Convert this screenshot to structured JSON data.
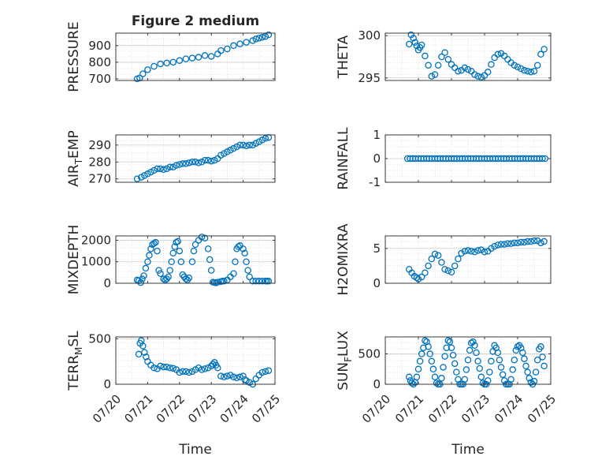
{
  "figure": {
    "title": "Figure 2 medium",
    "marker_color": "#0072BD",
    "axis_color": "#262626",
    "grid_color": "#dcdcdc",
    "background": "#ffffff"
  },
  "chart_data": [
    {
      "type": "scatter",
      "id": "pressure",
      "title": "Figure 2 medium",
      "ylabel": "PRESSURE",
      "xlim": [
        0,
        5
      ],
      "ylim": [
        690,
        975
      ],
      "yticks": [
        700,
        800,
        900
      ],
      "xticks": [
        0,
        1,
        2,
        3,
        4,
        5
      ],
      "xticklabels": [],
      "xlabel": "",
      "grid": true,
      "series": [
        {
          "x": [
            0.67,
            0.75,
            0.85,
            1.0,
            1.2,
            1.4,
            1.6,
            1.8,
            2.0,
            2.2,
            2.4,
            2.6,
            2.8,
            3.0,
            3.2,
            3.3,
            3.5,
            3.7,
            3.9,
            4.1,
            4.3,
            4.4,
            4.5,
            4.6,
            4.7,
            4.8
          ],
          "y": [
            700,
            705,
            730,
            755,
            775,
            790,
            795,
            800,
            810,
            820,
            825,
            830,
            840,
            835,
            850,
            870,
            880,
            900,
            910,
            920,
            930,
            940,
            945,
            950,
            955,
            965
          ]
        }
      ]
    },
    {
      "type": "scatter",
      "id": "theta",
      "ylabel": "THETA",
      "xlim": [
        0,
        5
      ],
      "ylim": [
        294.7,
        300.3
      ],
      "yticks": [
        295,
        300
      ],
      "xticks": [
        0,
        1,
        2,
        3,
        4,
        5
      ],
      "xticklabels": [],
      "xlabel": "",
      "grid": true,
      "series": [
        {
          "x": [
            0.72,
            0.78,
            0.85,
            0.9,
            0.95,
            1.0,
            1.05,
            1.1,
            1.2,
            1.3,
            1.4,
            1.5,
            1.6,
            1.7,
            1.8,
            1.9,
            2.0,
            2.1,
            2.2,
            2.3,
            2.4,
            2.5,
            2.6,
            2.7,
            2.8,
            2.9,
            3.0,
            3.1,
            3.2,
            3.3,
            3.4,
            3.5,
            3.6,
            3.7,
            3.8,
            3.9,
            4.0,
            4.1,
            4.2,
            4.3,
            4.4,
            4.5,
            4.6,
            4.7,
            4.8
          ],
          "y": [
            299.0,
            300.1,
            299.7,
            299.2,
            298.8,
            298.3,
            298.6,
            298.9,
            297.6,
            296.5,
            295.2,
            295.4,
            296.5,
            297.5,
            298.0,
            297.2,
            296.6,
            296.2,
            295.8,
            295.9,
            296.2,
            296.0,
            295.8,
            295.4,
            295.2,
            295.1,
            295.3,
            295.7,
            296.6,
            297.4,
            297.8,
            297.9,
            297.6,
            297.2,
            296.8,
            296.5,
            296.3,
            296.1,
            295.9,
            295.8,
            295.7,
            295.8,
            296.5,
            297.8,
            298.4
          ]
        }
      ]
    },
    {
      "type": "scatter",
      "id": "airtemp",
      "ylabel": "AIR_TEMP",
      "xlim": [
        0,
        5
      ],
      "ylim": [
        268,
        296
      ],
      "yticks": [
        270,
        280,
        290
      ],
      "xticks": [
        0,
        1,
        2,
        3,
        4,
        5
      ],
      "xticklabels": [],
      "xlabel": "",
      "grid": true,
      "series": [
        {
          "x": [
            0.67,
            0.8,
            0.9,
            1.0,
            1.1,
            1.2,
            1.3,
            1.4,
            1.5,
            1.6,
            1.7,
            1.8,
            1.9,
            2.0,
            2.1,
            2.2,
            2.3,
            2.4,
            2.5,
            2.6,
            2.7,
            2.8,
            2.9,
            3.0,
            3.1,
            3.2,
            3.3,
            3.4,
            3.5,
            3.6,
            3.7,
            3.8,
            3.9,
            4.0,
            4.1,
            4.2,
            4.3,
            4.4,
            4.5,
            4.6,
            4.7,
            4.8
          ],
          "y": [
            270,
            271,
            272,
            273,
            274,
            275,
            276,
            276,
            275.5,
            276,
            277,
            277,
            278,
            278.5,
            279,
            279,
            279.5,
            280,
            280,
            279.5,
            280,
            281,
            281,
            280.5,
            281,
            282,
            284,
            285,
            286,
            287,
            288,
            289,
            290,
            290,
            289.5,
            290,
            290,
            291,
            292,
            293,
            294,
            294.5
          ]
        }
      ]
    },
    {
      "type": "scatter",
      "id": "rainfall",
      "ylabel": "RAINFALL",
      "xlim": [
        0,
        5
      ],
      "ylim": [
        -1,
        1
      ],
      "yticks": [
        -1,
        0,
        1
      ],
      "xticks": [
        0,
        1,
        2,
        3,
        4,
        5
      ],
      "xticklabels": [],
      "xlabel": "",
      "grid": true,
      "series": [
        {
          "x": [
            0.67,
            0.75,
            0.83,
            0.91,
            1.0,
            1.08,
            1.16,
            1.25,
            1.33,
            1.41,
            1.5,
            1.58,
            1.66,
            1.75,
            1.83,
            1.91,
            2.0,
            2.08,
            2.16,
            2.25,
            2.33,
            2.41,
            2.5,
            2.58,
            2.66,
            2.75,
            2.83,
            2.91,
            3.0,
            3.08,
            3.16,
            3.25,
            3.33,
            3.41,
            3.5,
            3.58,
            3.66,
            3.75,
            3.83,
            3.91,
            4.0,
            4.08,
            4.16,
            4.25,
            4.33,
            4.41,
            4.5,
            4.58,
            4.66,
            4.75,
            4.83
          ],
          "y": [
            0,
            0,
            0,
            0,
            0,
            0,
            0,
            0,
            0,
            0,
            0,
            0,
            0,
            0,
            0,
            0,
            0,
            0,
            0,
            0,
            0,
            0,
            0,
            0,
            0,
            0,
            0,
            0,
            0,
            0,
            0,
            0,
            0,
            0,
            0,
            0,
            0,
            0,
            0,
            0,
            0,
            0,
            0,
            0,
            0,
            0,
            0,
            0,
            0,
            0,
            0
          ]
        }
      ]
    },
    {
      "type": "scatter",
      "id": "mixdepth",
      "ylabel": "MIXDEPTH",
      "xlim": [
        0,
        5
      ],
      "ylim": [
        0,
        2200
      ],
      "yticks": [
        0,
        1000,
        2000
      ],
      "xticks": [
        0,
        1,
        2,
        3,
        4,
        5
      ],
      "xticklabels": [],
      "xlabel": "",
      "grid": true,
      "series": [
        {
          "x": [
            0.67,
            0.72,
            0.78,
            0.83,
            0.88,
            0.94,
            1.0,
            1.05,
            1.1,
            1.15,
            1.2,
            1.25,
            1.3,
            1.35,
            1.4,
            1.5,
            1.55,
            1.6,
            1.65,
            1.7,
            1.75,
            1.8,
            1.85,
            1.9,
            1.95,
            2.0,
            2.05,
            2.1,
            2.15,
            2.2,
            2.25,
            2.3,
            2.4,
            2.45,
            2.5,
            2.6,
            2.7,
            2.8,
            2.9,
            2.95,
            3.0,
            3.05,
            3.1,
            3.15,
            3.2,
            3.3,
            3.35,
            3.4,
            3.5,
            3.6,
            3.7,
            3.75,
            3.8,
            3.85,
            3.9,
            4.0,
            4.05,
            4.1,
            4.15,
            4.2,
            4.3,
            4.4,
            4.5,
            4.6,
            4.7,
            4.75,
            4.8
          ],
          "y": [
            150,
            120,
            30,
            200,
            350,
            700,
            1000,
            1300,
            1600,
            1800,
            1850,
            1900,
            1500,
            600,
            450,
            200,
            150,
            200,
            300,
            600,
            1000,
            1400,
            1700,
            1900,
            1950,
            1500,
            1000,
            400,
            300,
            200,
            150,
            250,
            1000,
            1500,
            1800,
            2000,
            2150,
            2100,
            1600,
            1100,
            600,
            50,
            30,
            20,
            50,
            80,
            100,
            100,
            150,
            300,
            450,
            1000,
            1600,
            1700,
            1750,
            1600,
            1400,
            1000,
            600,
            300,
            100,
            100,
            100,
            100,
            100,
            100,
            100
          ]
        }
      ]
    },
    {
      "type": "scatter",
      "id": "h2omixra",
      "ylabel": "H2OMIXRA",
      "xlim": [
        0,
        5
      ],
      "ylim": [
        0,
        6.8
      ],
      "yticks": [
        0,
        5
      ],
      "xticks": [
        0,
        1,
        2,
        3,
        4,
        5
      ],
      "xticklabels": [],
      "xlabel": "",
      "grid": true,
      "series": [
        {
          "x": [
            0.72,
            0.8,
            0.88,
            0.95,
            1.0,
            1.1,
            1.2,
            1.3,
            1.4,
            1.5,
            1.6,
            1.7,
            1.8,
            1.9,
            2.0,
            2.1,
            2.2,
            2.3,
            2.4,
            2.5,
            2.6,
            2.7,
            2.8,
            2.9,
            3.0,
            3.1,
            3.2,
            3.3,
            3.4,
            3.5,
            3.6,
            3.7,
            3.8,
            3.9,
            4.0,
            4.1,
            4.2,
            4.3,
            4.4,
            4.5,
            4.6,
            4.7,
            4.8
          ],
          "y": [
            2.0,
            1.5,
            1.0,
            0.8,
            0.6,
            0.9,
            1.5,
            2.5,
            3.5,
            4.2,
            4.0,
            3.0,
            2.0,
            1.8,
            1.6,
            2.5,
            3.5,
            4.3,
            4.6,
            4.7,
            4.6,
            4.5,
            4.7,
            4.8,
            4.5,
            4.6,
            5.0,
            5.3,
            5.5,
            5.6,
            5.6,
            5.7,
            5.7,
            5.8,
            5.8,
            5.9,
            5.9,
            6.0,
            6.0,
            6.1,
            6.1,
            5.8,
            6.0
          ]
        }
      ]
    },
    {
      "type": "scatter",
      "id": "terrmsl",
      "ylabel": "TERR_MSL",
      "xlim": [
        0,
        5
      ],
      "ylim": [
        0,
        520
      ],
      "yticks": [
        0,
        500
      ],
      "xticks": [
        0,
        1,
        2,
        3,
        4,
        5
      ],
      "xticklabels": [
        "07/20",
        "07/21",
        "07/22",
        "07/23",
        "07/24",
        "07/25"
      ],
      "xlabel": "Time",
      "grid": true,
      "series": [
        {
          "x": [
            0.72,
            0.76,
            0.8,
            0.85,
            0.9,
            0.95,
            1.0,
            1.1,
            1.2,
            1.3,
            1.4,
            1.5,
            1.6,
            1.7,
            1.8,
            1.9,
            2.0,
            2.1,
            2.2,
            2.3,
            2.4,
            2.5,
            2.6,
            2.7,
            2.8,
            2.9,
            3.0,
            3.05,
            3.1,
            3.15,
            3.2,
            3.3,
            3.4,
            3.5,
            3.6,
            3.7,
            3.8,
            3.9,
            4.0,
            4.05,
            4.1,
            4.2,
            4.3,
            4.4,
            4.5,
            4.6,
            4.7,
            4.8
          ],
          "y": [
            330,
            450,
            480,
            420,
            350,
            300,
            250,
            210,
            180,
            170,
            200,
            190,
            190,
            180,
            175,
            160,
            130,
            140,
            140,
            130,
            140,
            160,
            180,
            160,
            170,
            180,
            200,
            220,
            240,
            210,
            180,
            90,
            80,
            90,
            100,
            80,
            70,
            80,
            90,
            50,
            40,
            20,
            0,
            60,
            100,
            130,
            140,
            150
          ]
        }
      ]
    },
    {
      "type": "scatter",
      "id": "sunflux",
      "ylabel": "SUN_FLUX",
      "xlim": [
        0,
        5
      ],
      "ylim": [
        0,
        780
      ],
      "yticks": [
        0,
        500
      ],
      "xticks": [
        0,
        1,
        2,
        3,
        4,
        5
      ],
      "xticklabels": [
        "07/20",
        "07/21",
        "07/22",
        "07/23",
        "07/24",
        "07/25"
      ],
      "xlabel": "Time",
      "grid": true,
      "series": [
        {
          "x": [
            0.72,
            0.76,
            0.8,
            0.85,
            0.9,
            0.95,
            1.0,
            1.05,
            1.1,
            1.15,
            1.2,
            1.25,
            1.3,
            1.35,
            1.4,
            1.45,
            1.5,
            1.55,
            1.6,
            1.65,
            1.7,
            1.75,
            1.8,
            1.85,
            1.9,
            1.95,
            2.0,
            2.05,
            2.1,
            2.15,
            2.2,
            2.25,
            2.3,
            2.35,
            2.4,
            2.45,
            2.5,
            2.55,
            2.6,
            2.65,
            2.7,
            2.75,
            2.8,
            2.85,
            2.9,
            2.95,
            3.0,
            3.05,
            3.1,
            3.15,
            3.2,
            3.25,
            3.3,
            3.35,
            3.4,
            3.45,
            3.5,
            3.55,
            3.6,
            3.65,
            3.7,
            3.75,
            3.8,
            3.85,
            3.9,
            3.95,
            4.0,
            4.05,
            4.1,
            4.15,
            4.2,
            4.25,
            4.3,
            4.35,
            4.4,
            4.45,
            4.5,
            4.55,
            4.6,
            4.65,
            4.7,
            4.75,
            4.8
          ],
          "y": [
            120,
            60,
            20,
            0,
            30,
            120,
            250,
            380,
            500,
            600,
            720,
            700,
            620,
            500,
            380,
            250,
            120,
            20,
            0,
            0,
            100,
            280,
            460,
            600,
            720,
            700,
            600,
            480,
            340,
            200,
            80,
            0,
            0,
            0,
            80,
            240,
            400,
            560,
            680,
            700,
            640,
            520,
            380,
            260,
            120,
            20,
            0,
            0,
            60,
            200,
            380,
            540,
            640,
            600,
            520,
            400,
            280,
            160,
            60,
            0,
            0,
            0,
            80,
            240,
            400,
            560,
            620,
            640,
            600,
            520,
            420,
            300,
            200,
            100,
            30,
            0,
            50,
            200,
            400,
            580,
            620,
            450,
            300
          ]
        }
      ]
    }
  ]
}
